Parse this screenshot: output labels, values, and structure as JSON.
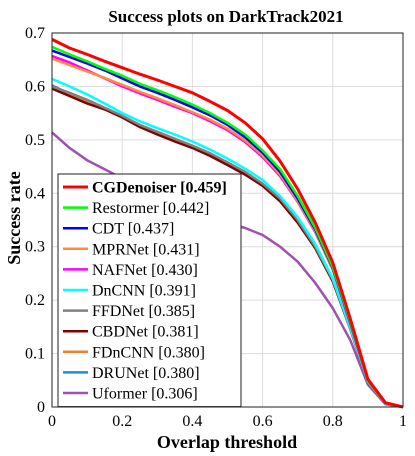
{
  "chart_data": {
    "type": "line",
    "title": "Success plots on DarkTrack2021",
    "xlabel": "Overlap threshold",
    "ylabel": "Success rate",
    "xlim": [
      0,
      1
    ],
    "ylim": [
      0,
      0.7
    ],
    "xticks": [
      "0",
      "0.2",
      "0.4",
      "0.6",
      "0.8",
      "1"
    ],
    "yticks": [
      "0",
      "0.1",
      "0.2",
      "0.3",
      "0.4",
      "0.5",
      "0.6",
      "0.7"
    ],
    "grid": true,
    "legend_position": "bottom-left",
    "x": [
      0,
      0.05,
      0.1,
      0.15,
      0.2,
      0.25,
      0.3,
      0.35,
      0.4,
      0.45,
      0.5,
      0.55,
      0.6,
      0.65,
      0.7,
      0.75,
      0.8,
      0.85,
      0.9,
      0.95,
      1
    ],
    "series": [
      {
        "name": "CGDenoiser [0.459]",
        "color": "#ff0000",
        "bold": true,
        "values": [
          0.688,
          0.672,
          0.66,
          0.647,
          0.635,
          0.623,
          0.612,
          0.6,
          0.588,
          0.572,
          0.555,
          0.532,
          0.502,
          0.46,
          0.408,
          0.345,
          0.27,
          0.165,
          0.052,
          0.008,
          0.0
        ]
      },
      {
        "name": "Restormer [0.442]",
        "color": "#00ff00",
        "bold": false,
        "values": [
          0.674,
          0.66,
          0.647,
          0.633,
          0.62,
          0.605,
          0.593,
          0.58,
          0.566,
          0.55,
          0.532,
          0.51,
          0.48,
          0.445,
          0.395,
          0.335,
          0.262,
          0.16,
          0.05,
          0.007,
          0.0
        ]
      },
      {
        "name": "CDT [0.437]",
        "color": "#0000ff",
        "bold": false,
        "values": [
          0.667,
          0.655,
          0.643,
          0.63,
          0.615,
          0.6,
          0.588,
          0.575,
          0.561,
          0.546,
          0.528,
          0.505,
          0.476,
          0.44,
          0.39,
          0.332,
          0.26,
          0.158,
          0.05,
          0.007,
          0.0
        ]
      },
      {
        "name": "MPRNet [0.431]",
        "color": "#ff8c3c",
        "bold": false,
        "values": [
          0.652,
          0.64,
          0.628,
          0.616,
          0.603,
          0.59,
          0.578,
          0.565,
          0.552,
          0.538,
          0.521,
          0.499,
          0.471,
          0.435,
          0.386,
          0.329,
          0.258,
          0.157,
          0.049,
          0.007,
          0.0
        ]
      },
      {
        "name": "NAFNet [0.430]",
        "color": "#ff00ff",
        "bold": false,
        "values": [
          0.657,
          0.645,
          0.63,
          0.615,
          0.6,
          0.587,
          0.575,
          0.562,
          0.55,
          0.535,
          0.518,
          0.496,
          0.468,
          0.432,
          0.384,
          0.327,
          0.257,
          0.156,
          0.049,
          0.007,
          0.0
        ]
      },
      {
        "name": "DnCNN [0.391]",
        "color": "#00ffff",
        "bold": false,
        "values": [
          0.614,
          0.6,
          0.585,
          0.568,
          0.55,
          0.535,
          0.522,
          0.51,
          0.497,
          0.482,
          0.465,
          0.446,
          0.425,
          0.395,
          0.355,
          0.305,
          0.24,
          0.148,
          0.047,
          0.006,
          0.0
        ]
      },
      {
        "name": "FFDNet [0.385]",
        "color": "#808080",
        "bold": false,
        "values": [
          0.6,
          0.588,
          0.575,
          0.56,
          0.545,
          0.528,
          0.515,
          0.502,
          0.489,
          0.475,
          0.458,
          0.44,
          0.418,
          0.39,
          0.35,
          0.3,
          0.238,
          0.147,
          0.047,
          0.006,
          0.0
        ]
      },
      {
        "name": "CBDNet [0.381]",
        "color": "#800000",
        "bold": false,
        "values": [
          0.596,
          0.582,
          0.568,
          0.557,
          0.542,
          0.524,
          0.51,
          0.497,
          0.485,
          0.47,
          0.453,
          0.435,
          0.414,
          0.385,
          0.345,
          0.297,
          0.235,
          0.146,
          0.046,
          0.006,
          0.0
        ]
      },
      {
        "name": "FDnCNN [0.380]",
        "color": "#f08030",
        "bold": false,
        "values": [
          0.598,
          0.584,
          0.57,
          0.558,
          0.543,
          0.525,
          0.511,
          0.498,
          0.486,
          0.471,
          0.454,
          0.436,
          0.415,
          0.386,
          0.346,
          0.298,
          0.236,
          0.146,
          0.046,
          0.006,
          0.0
        ]
      },
      {
        "name": "DRUNet [0.380]",
        "color": "#1e90d0",
        "bold": false,
        "values": [
          0.602,
          0.586,
          0.572,
          0.559,
          0.544,
          0.526,
          0.512,
          0.499,
          0.487,
          0.472,
          0.455,
          0.437,
          0.416,
          0.387,
          0.347,
          0.299,
          0.237,
          0.147,
          0.046,
          0.006,
          0.0
        ]
      },
      {
        "name": "Uformer [0.306]",
        "color": "#a050b0",
        "bold": false,
        "values": [
          0.514,
          0.485,
          0.462,
          0.445,
          0.428,
          0.413,
          0.4,
          0.388,
          0.375,
          0.36,
          0.345,
          0.335,
          0.322,
          0.3,
          0.272,
          0.232,
          0.185,
          0.125,
          0.042,
          0.005,
          0.0
        ]
      }
    ]
  }
}
